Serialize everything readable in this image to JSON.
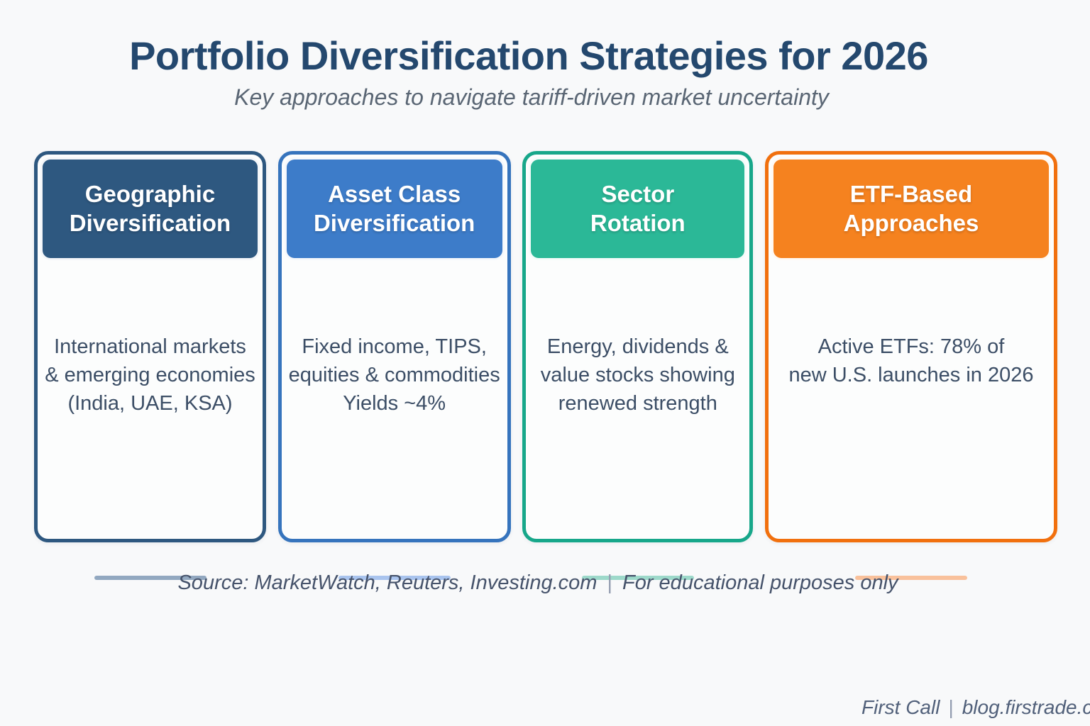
{
  "header": {
    "title": "Portfolio Diversification Strategies for 2026",
    "subtitle": "Key approaches to navigate tariff-driven market uncertainty"
  },
  "cards": [
    {
      "title": "Geographic\nDiversification",
      "body": "International markets\n& emerging economies\n(India, UAE, KSA)",
      "colors": {
        "accent": "#2e5880",
        "header": "#2e5880",
        "underline": "#92a8c0"
      }
    },
    {
      "title": "Asset Class\nDiversification",
      "body": "Fixed income, TIPS,\nequities & commodities\nYields ~4%",
      "colors": {
        "accent": "#3674bd",
        "header": "#3d7cc9",
        "underline": "#a9c4ee"
      }
    },
    {
      "title": "Sector\nRotation",
      "body": "Energy, dividends &\nvalue stocks showing\nrenewed strength",
      "colors": {
        "accent": "#17a78a",
        "header": "#2bb897",
        "underline": "#9dd9ca"
      }
    },
    {
      "title": "ETF-Based\nApproaches",
      "body": "Active ETFs: 78% of\nnew U.S. launches in 2026",
      "colors": {
        "accent": "#f1700e",
        "header": "#f5821f",
        "underline": "#f9c19b"
      }
    }
  ],
  "footer": {
    "source": "Source: MarketWatch, Reuters, Investing.com",
    "separator": "|",
    "note": "For educational purposes only",
    "brand": "First Call",
    "site": "blog.firstrade.com"
  }
}
